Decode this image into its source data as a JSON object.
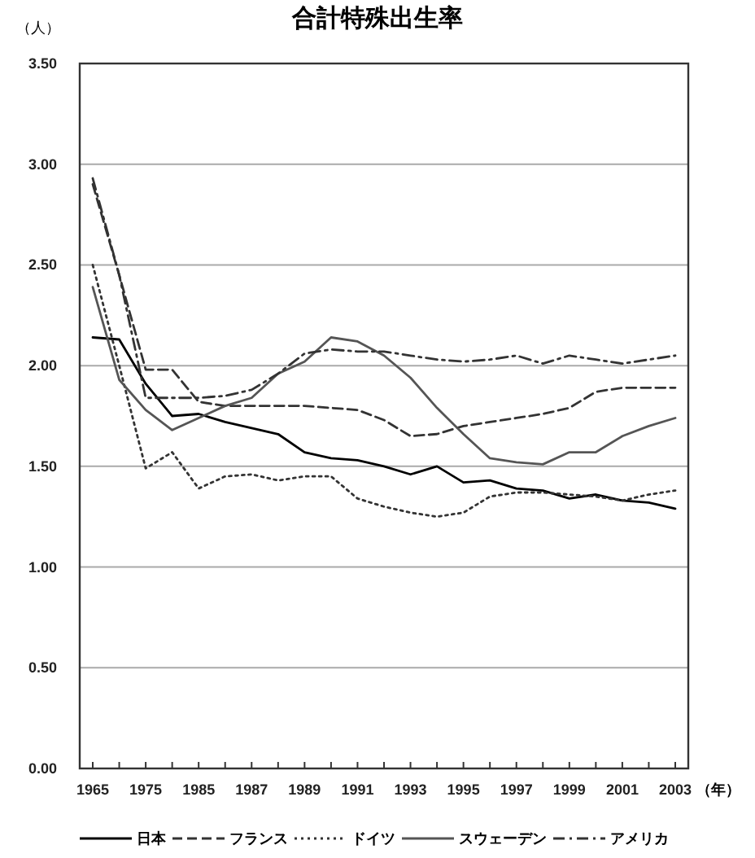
{
  "chart_data": {
    "type": "line",
    "title": "合計特殊出生率",
    "ylabel": "（人）",
    "xlabel": "（年）",
    "categories": [
      "1965",
      null,
      "1975",
      null,
      "1985",
      null,
      "1987",
      null,
      "1989",
      null,
      "1991",
      null,
      "1993",
      null,
      "1995",
      null,
      "1997",
      null,
      "1999",
      null,
      "2001",
      null,
      "2003"
    ],
    "ylim": [
      0,
      3.5
    ],
    "yticks": [
      {
        "value": 0,
        "label": "0.00"
      },
      {
        "value": 0.5,
        "label": "0.50"
      },
      {
        "value": 1,
        "label": "1.00"
      },
      {
        "value": 1.5,
        "label": "1.50"
      },
      {
        "value": 2,
        "label": "2.00"
      },
      {
        "value": 2.5,
        "label": "2.50"
      },
      {
        "value": 3,
        "label": "3.00"
      },
      {
        "value": 3.5,
        "label": "3.50"
      }
    ],
    "grid": "y",
    "legend": "bottom",
    "marker": "none",
    "series": [
      {
        "name": "日本",
        "color": "#000000",
        "line_style": "solid",
        "values": [
          2.14,
          2.13,
          1.91,
          1.75,
          1.76,
          1.72,
          1.69,
          1.66,
          1.57,
          1.54,
          1.53,
          1.5,
          1.46,
          1.5,
          1.42,
          1.43,
          1.39,
          1.38,
          1.34,
          1.36,
          1.33,
          1.32,
          1.29
        ]
      },
      {
        "name": "フランス",
        "color": "#333333",
        "line_style": "dashed",
        "values": [
          2.9,
          2.45,
          1.98,
          1.98,
          1.82,
          1.8,
          1.8,
          1.8,
          1.8,
          1.79,
          1.78,
          1.73,
          1.65,
          1.66,
          1.7,
          1.72,
          1.74,
          1.76,
          1.79,
          1.87,
          1.89,
          1.89,
          1.89
        ]
      },
      {
        "name": "ドイツ",
        "color": "#333333",
        "line_style": "dotted",
        "values": [
          2.5,
          2.0,
          1.49,
          1.57,
          1.39,
          1.45,
          1.46,
          1.43,
          1.45,
          1.45,
          1.34,
          1.3,
          1.27,
          1.25,
          1.27,
          1.35,
          1.37,
          1.37,
          1.36,
          1.35,
          1.33,
          1.36,
          1.38
        ]
      },
      {
        "name": "スウェーデン",
        "color": "#555555",
        "line_style": "solid",
        "values": [
          2.39,
          1.93,
          1.78,
          1.68,
          1.74,
          1.8,
          1.84,
          1.96,
          2.02,
          2.14,
          2.12,
          2.05,
          1.94,
          1.79,
          1.66,
          1.54,
          1.52,
          1.51,
          1.57,
          1.57,
          1.65,
          1.7,
          1.74
        ]
      },
      {
        "name": "アメリカ",
        "color": "#333333",
        "line_style": "dashdot",
        "values": [
          2.93,
          2.45,
          1.84,
          1.84,
          1.84,
          1.85,
          1.88,
          1.96,
          2.06,
          2.08,
          2.07,
          2.07,
          2.05,
          2.03,
          2.02,
          2.03,
          2.05,
          2.01,
          2.05,
          2.03,
          2.01,
          2.03,
          2.05
        ]
      }
    ]
  }
}
